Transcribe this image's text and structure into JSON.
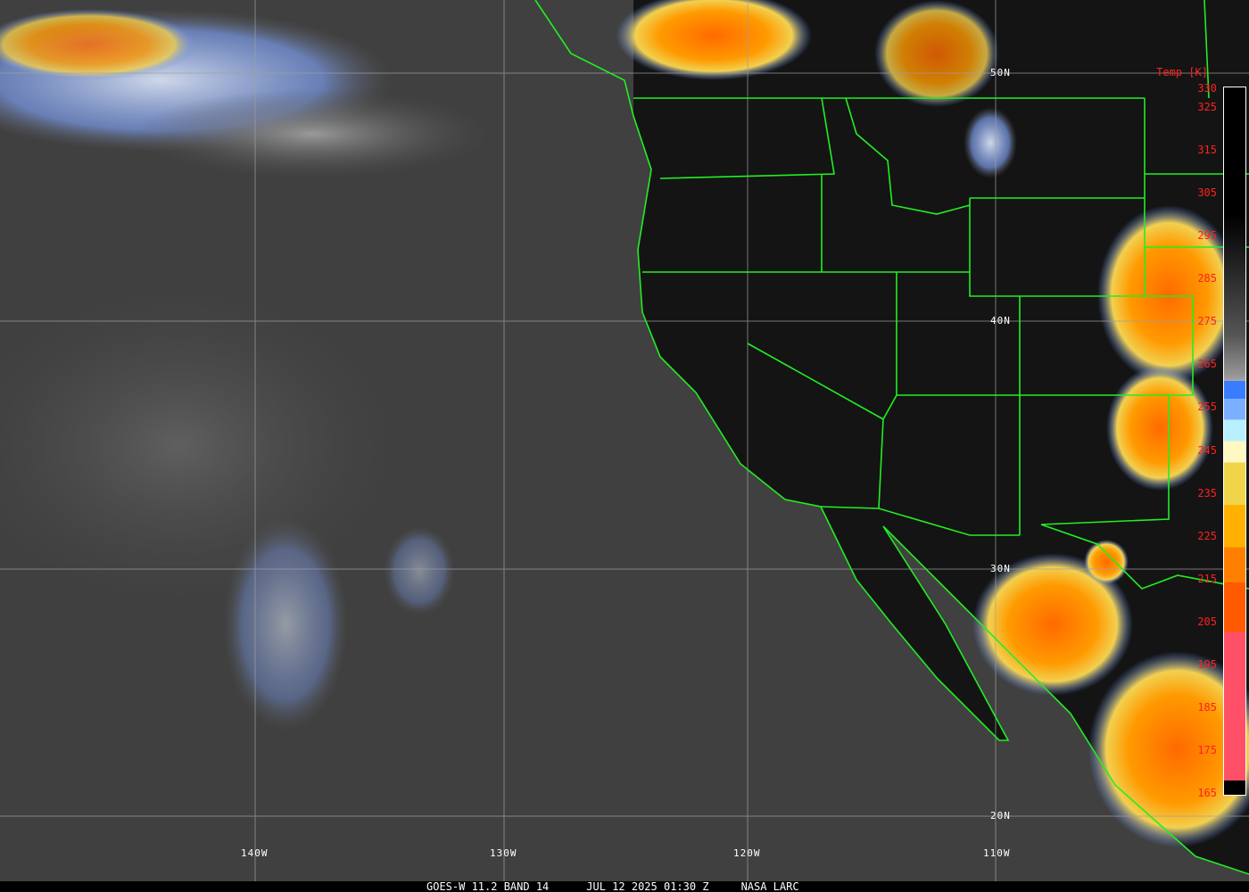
{
  "caption": {
    "satellite": "GOES-W 11.2 BAND 14",
    "datetime": "JUL 12 2025 01:30 Z",
    "source": "NASA LARC"
  },
  "colorbar": {
    "title": "Temp [K]",
    "ticks": [
      "330",
      "325",
      "315",
      "305",
      "295",
      "285",
      "275",
      "265",
      "255",
      "245",
      "235",
      "225",
      "215",
      "205",
      "195",
      "185",
      "175",
      "165"
    ],
    "range_k": [
      165,
      330
    ]
  },
  "grid": {
    "longitudes": [
      "140W",
      "130W",
      "120W",
      "110W"
    ],
    "latitudes": [
      "50N",
      "40N",
      "30N",
      "20N"
    ]
  },
  "colors": {
    "boundaries": "#22ee22",
    "grid": "#a0a0a0",
    "ticks": "#ff2020",
    "cold_cloud": "#ff7a00"
  }
}
